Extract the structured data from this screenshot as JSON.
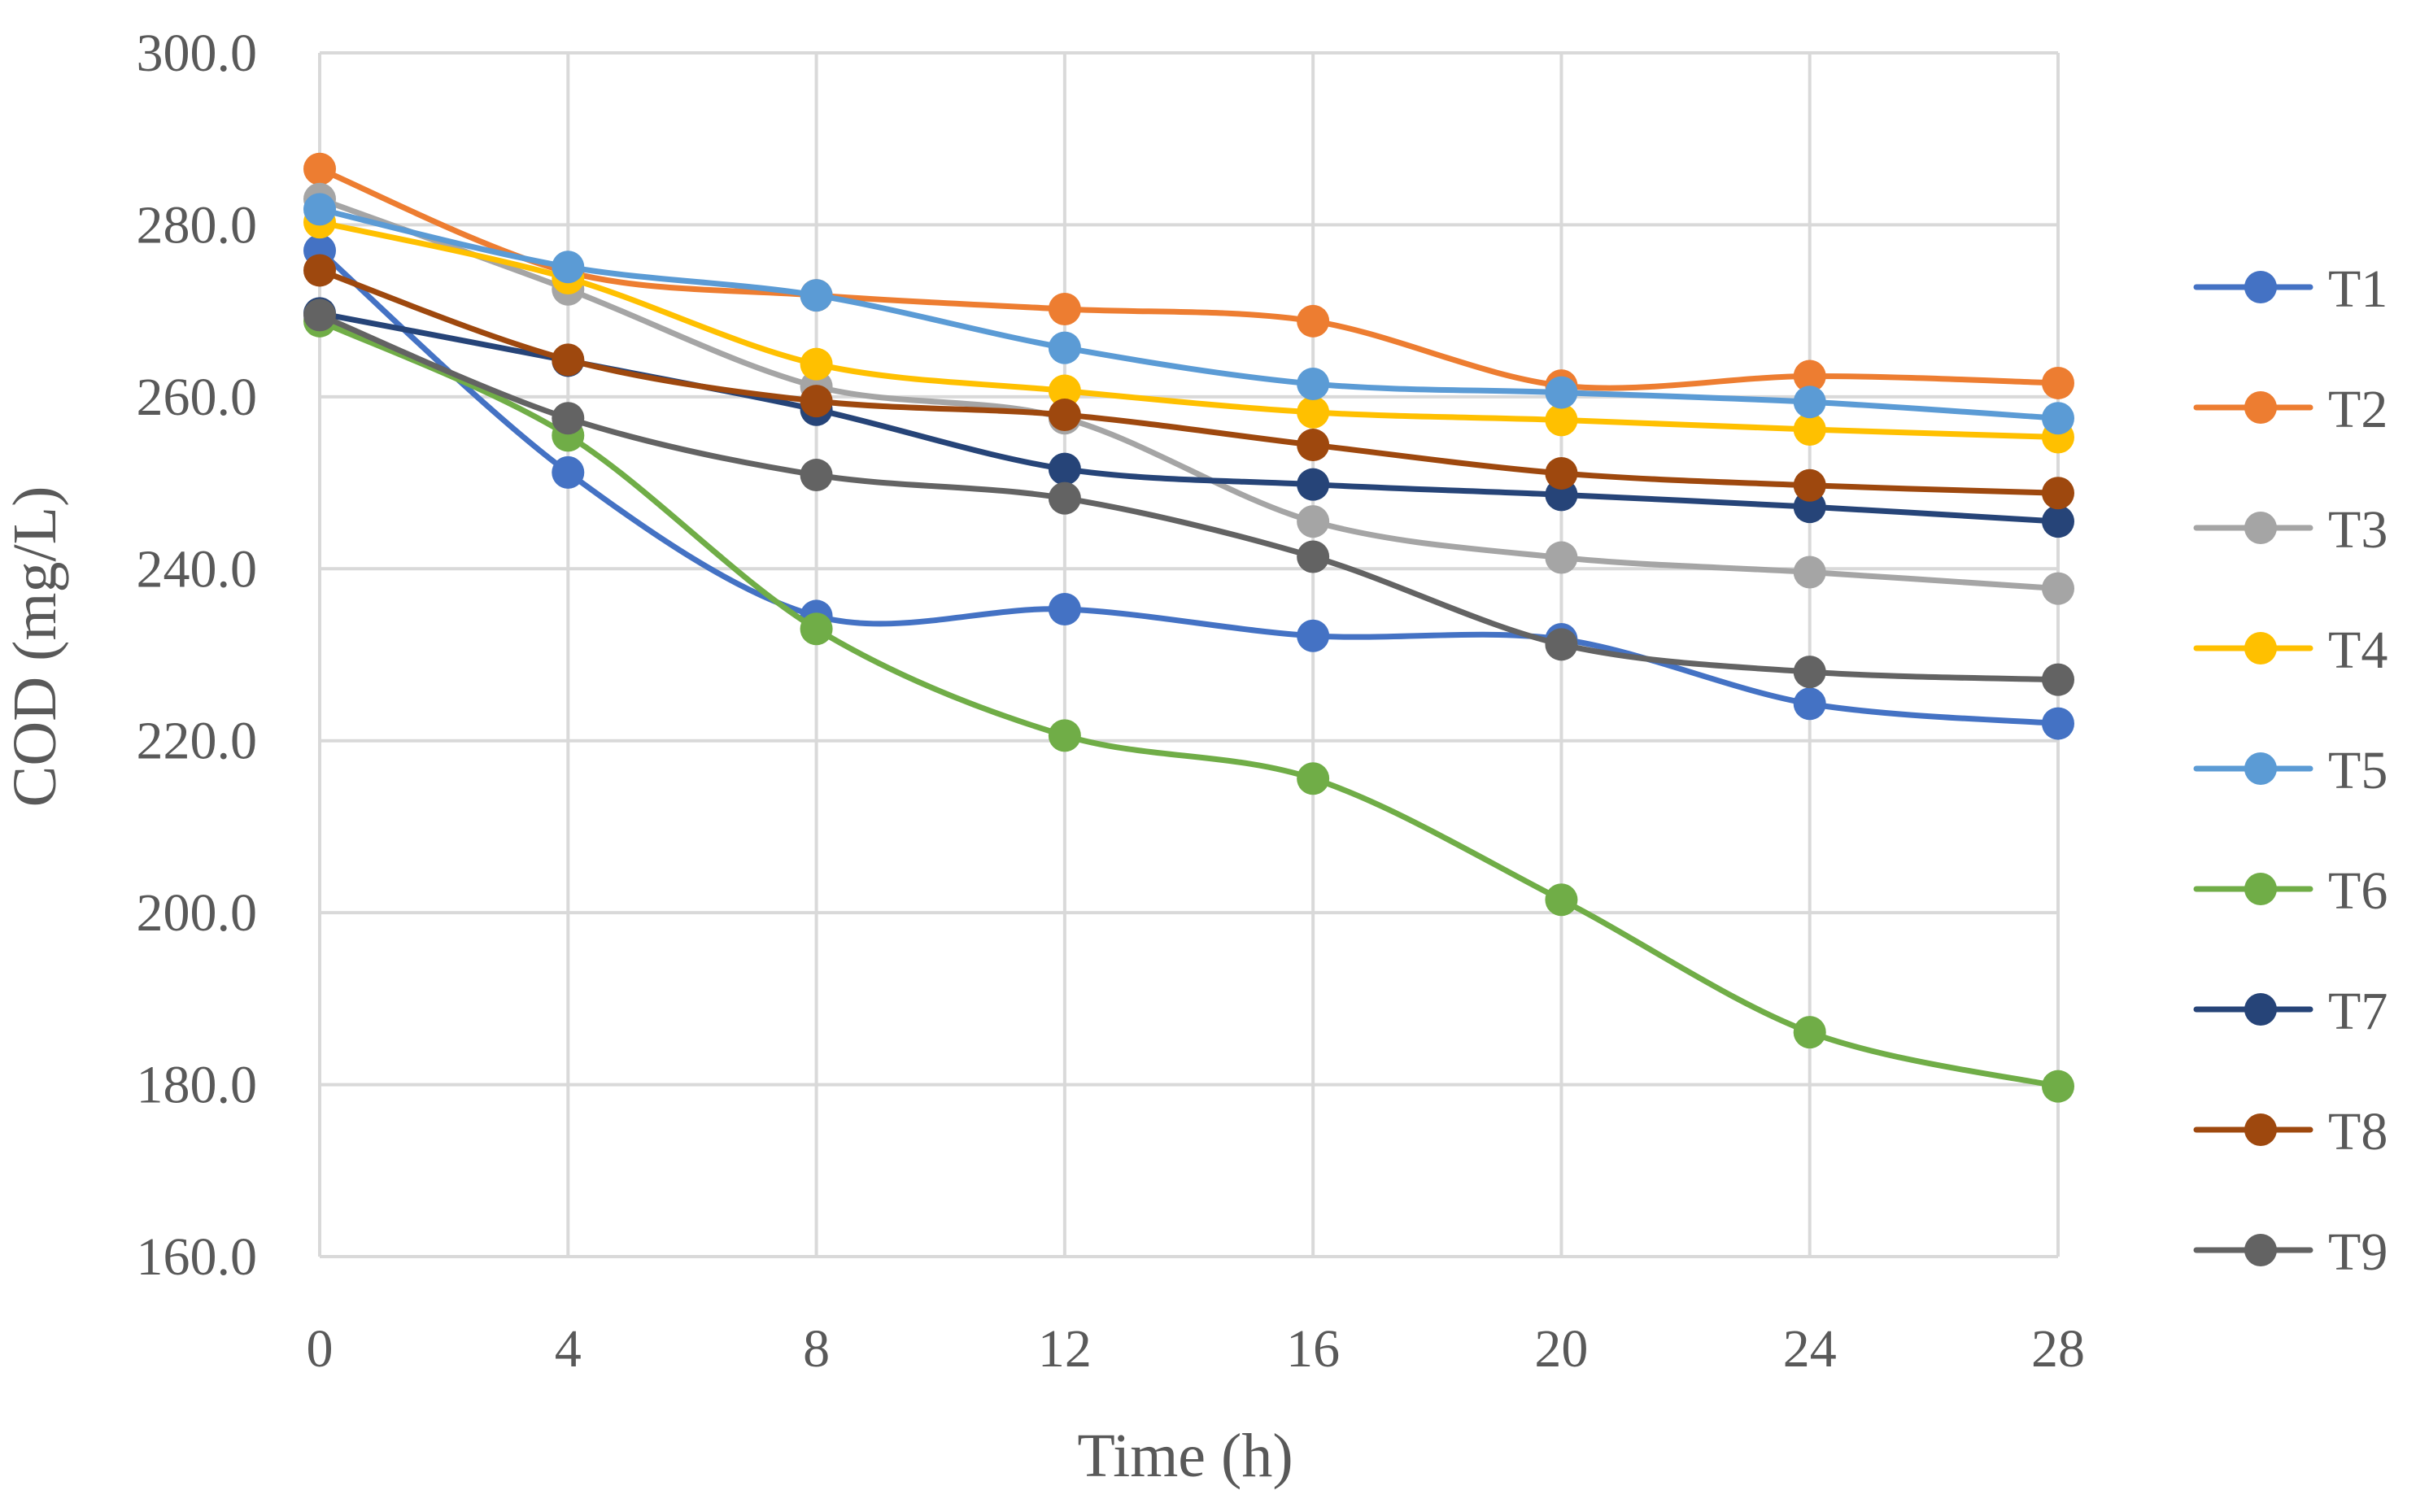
{
  "chart_data": {
    "type": "line",
    "title": "",
    "xlabel": "Time (h)",
    "ylabel": "COD (mg/L)",
    "x": [
      0,
      4,
      8,
      12,
      16,
      20,
      24,
      28
    ],
    "x_tick_labels": [
      "0",
      "4",
      "8",
      "12",
      "16",
      "20",
      "24",
      "28"
    ],
    "ylim": [
      160,
      300
    ],
    "y_ticks": [
      160,
      180,
      200,
      220,
      240,
      260,
      280,
      300
    ],
    "y_tick_labels": [
      "160.0",
      "180.0",
      "200.0",
      "220.0",
      "240.0",
      "260.0",
      "280.0",
      "300.0"
    ],
    "grid": true,
    "legend_position": "right",
    "smooth_lines": true,
    "series": [
      {
        "name": "T1",
        "color": "#4472C4",
        "values": [
          277.0,
          251.2,
          234.5,
          235.3,
          232.2,
          231.8,
          224.3,
          222.0
        ]
      },
      {
        "name": "T2",
        "color": "#ED7D31",
        "values": [
          286.5,
          274.5,
          271.8,
          270.2,
          268.8,
          261.3,
          262.4,
          261.6
        ]
      },
      {
        "name": "T3",
        "color": "#A5A5A5",
        "values": [
          283.0,
          272.5,
          261.2,
          257.5,
          245.5,
          241.3,
          239.6,
          237.7
        ]
      },
      {
        "name": "T4",
        "color": "#FFC000",
        "values": [
          280.3,
          273.8,
          263.8,
          260.7,
          258.2,
          257.3,
          256.2,
          255.3
        ]
      },
      {
        "name": "T5",
        "color": "#5B9BD5",
        "values": [
          281.8,
          275.1,
          271.8,
          265.7,
          261.5,
          260.5,
          259.4,
          257.5
        ]
      },
      {
        "name": "T6",
        "color": "#70AD47",
        "values": [
          268.8,
          255.5,
          233.0,
          220.6,
          215.6,
          201.5,
          186.1,
          179.8
        ]
      },
      {
        "name": "T7",
        "color": "#264478",
        "values": [
          269.7,
          264.2,
          258.5,
          251.6,
          249.8,
          248.6,
          247.2,
          245.5
        ]
      },
      {
        "name": "T8",
        "color": "#9E480E",
        "values": [
          274.7,
          264.3,
          259.5,
          257.9,
          254.4,
          251.1,
          249.7,
          248.8
        ]
      },
      {
        "name": "T9",
        "color": "#636363",
        "values": [
          269.5,
          257.5,
          250.9,
          248.2,
          241.4,
          231.2,
          228.0,
          227.1
        ]
      }
    ]
  }
}
